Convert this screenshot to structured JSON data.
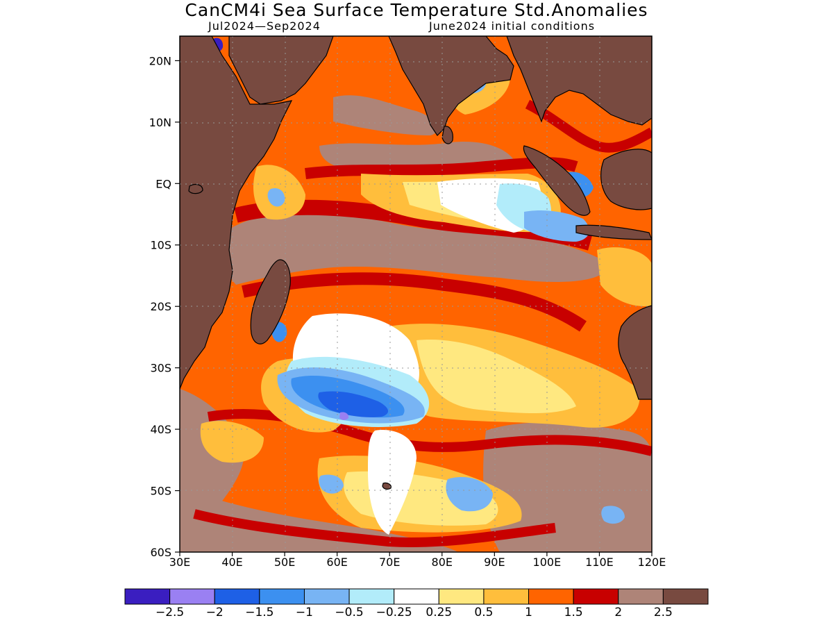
{
  "title": "CanCM4i Sea Surface Temperature Std.Anomalies",
  "subtitle_left": "Jul2024—Sep2024",
  "subtitle_right": "June2024 initial conditions",
  "map": {
    "lon_range": [
      30,
      120
    ],
    "lat_range": [
      -60,
      24
    ],
    "lat_ticks": [
      {
        "value": 20,
        "label": "20N"
      },
      {
        "value": 10,
        "label": "10N"
      },
      {
        "value": 0,
        "label": "EQ"
      },
      {
        "value": -10,
        "label": "10S"
      },
      {
        "value": -20,
        "label": "20S"
      },
      {
        "value": -30,
        "label": "30S"
      },
      {
        "value": -40,
        "label": "40S"
      },
      {
        "value": -50,
        "label": "50S"
      },
      {
        "value": -60,
        "label": "60S"
      }
    ],
    "lon_ticks": [
      {
        "value": 30,
        "label": "30E"
      },
      {
        "value": 40,
        "label": "40E"
      },
      {
        "value": 50,
        "label": "50E"
      },
      {
        "value": 60,
        "label": "60E"
      },
      {
        "value": 70,
        "label": "70E"
      },
      {
        "value": 80,
        "label": "80E"
      },
      {
        "value": 90,
        "label": "90E"
      },
      {
        "value": 100,
        "label": "100E"
      },
      {
        "value": 110,
        "label": "110E"
      },
      {
        "value": 120,
        "label": "120E"
      }
    ]
  },
  "colorbar": {
    "colors": [
      "#3a1ec0",
      "#9a80f2",
      "#1e60e6",
      "#3c90f0",
      "#78b4f4",
      "#b2ecfa",
      "#ffffff",
      "#ffe880",
      "#ffbe3c",
      "#ff6400",
      "#c80000",
      "#ae8478",
      "#784a40"
    ],
    "labels": [
      "−2.5",
      "−2",
      "−1.5",
      "−1",
      "−0.5",
      "−0.25",
      "0.25",
      "0.5",
      "1",
      "1.5",
      "2",
      "2.5"
    ]
  },
  "colors": {
    "land": "#784a40",
    "pos_05": "#ffe880",
    "pos_1": "#ffbe3c",
    "pos_15": "#ff6400",
    "pos_2": "#c80000",
    "pos_25": "#ae8478",
    "neutral": "#ffffff",
    "neg_025": "#b2ecfa",
    "neg_05": "#78b4f4",
    "neg_1": "#3c90f0",
    "neg_15": "#1e60e6",
    "neg_2": "#9a80f2",
    "neg_25": "#3a1ec0"
  }
}
